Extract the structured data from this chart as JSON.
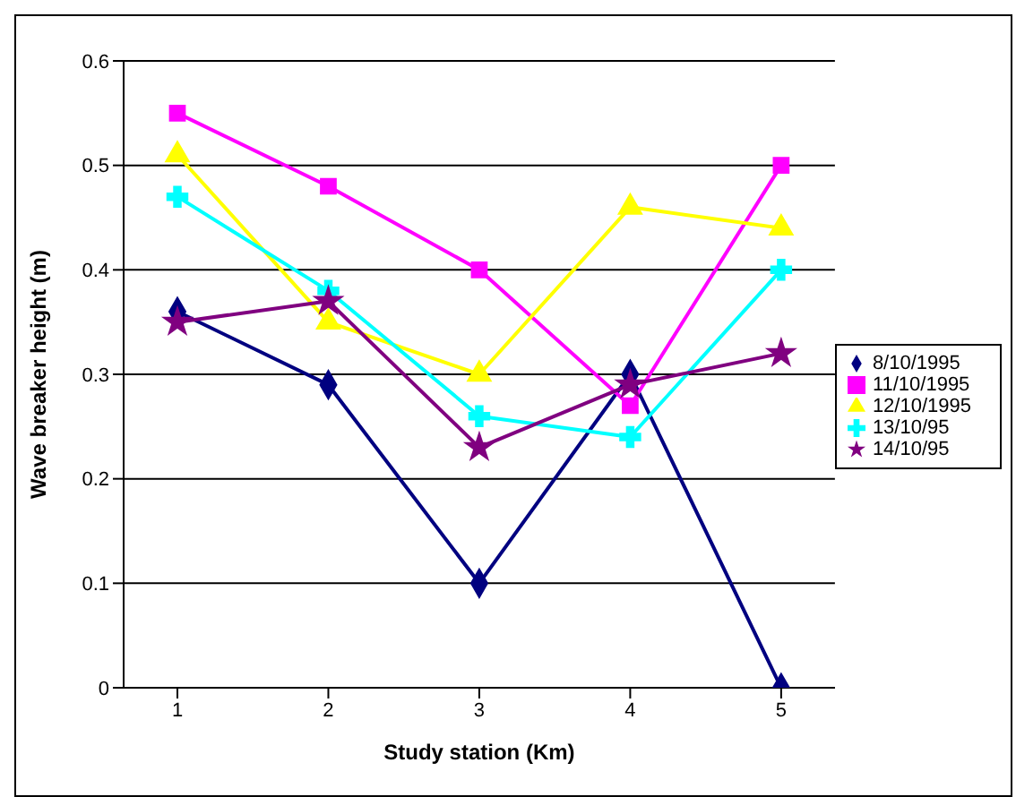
{
  "chart_data": {
    "type": "line",
    "xlabel": "Study station (Km)",
    "ylabel": "Wave breaker height (m)",
    "categories": [
      "1",
      "2",
      "3",
      "4",
      "5"
    ],
    "series": [
      {
        "name": "8/10/1995",
        "color": "#000080",
        "marker": "diamond",
        "values": [
          0.36,
          0.29,
          0.1,
          0.3,
          0
        ]
      },
      {
        "name": "11/10/1995",
        "color": "#ff00ff",
        "marker": "square",
        "values": [
          0.55,
          0.48,
          0.4,
          0.27,
          0.5
        ]
      },
      {
        "name": "12/10/1995",
        "color": "#ffff00",
        "marker": "triangle",
        "values": [
          0.51,
          0.35,
          0.3,
          0.46,
          0.44
        ]
      },
      {
        "name": "13/10/95",
        "color": "#00ffff",
        "marker": "cross",
        "values": [
          0.47,
          0.38,
          0.26,
          0.24,
          0.4
        ]
      },
      {
        "name": "14/10/95",
        "color": "#800080",
        "marker": "star",
        "values": [
          0.35,
          0.37,
          0.23,
          0.29,
          0.32
        ]
      }
    ],
    "ylim": [
      0,
      0.6
    ],
    "yticks": [
      0,
      0.1,
      0.2,
      0.3,
      0.4,
      0.5,
      0.6
    ],
    "grid": "y",
    "legend": "right",
    "line_style": "solid"
  }
}
